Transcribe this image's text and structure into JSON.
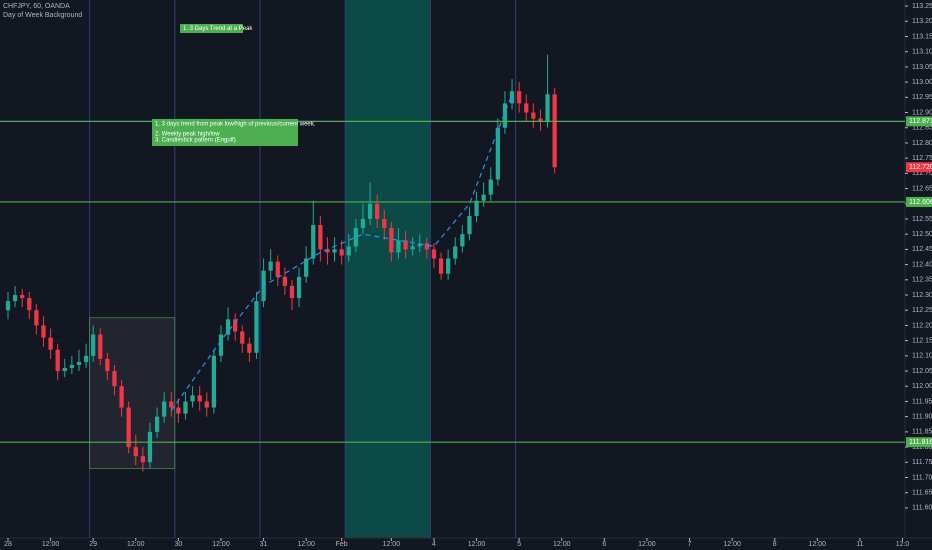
{
  "chart_data": {
    "type": "candlestick",
    "title": "CHFJPY, 60, OANDA",
    "subtitle": "Day of Week Background",
    "x": [
      0,
      2,
      4,
      6,
      8,
      10,
      12,
      14,
      16,
      18,
      20,
      22,
      24,
      26,
      28,
      30,
      32,
      34,
      36,
      38,
      40,
      42,
      44,
      46,
      48,
      50,
      52,
      54,
      56,
      58,
      60,
      62,
      64,
      66,
      68,
      70,
      72,
      74,
      76,
      78,
      80,
      82,
      84,
      86,
      88,
      90,
      92,
      94,
      96,
      98,
      100,
      102,
      104,
      106,
      108,
      110,
      112,
      114,
      116,
      118,
      120,
      122,
      124,
      126,
      128,
      130,
      132,
      134,
      136,
      138,
      140,
      142,
      144,
      146,
      148,
      150,
      152,
      154
    ],
    "open": [
      112.25,
      112.28,
      112.3,
      112.29,
      112.25,
      112.2,
      112.16,
      112.12,
      112.05,
      112.06,
      112.07,
      112.08,
      112.1,
      112.17,
      112.09,
      112.05,
      112.0,
      111.93,
      111.8,
      111.77,
      111.75,
      111.85,
      111.9,
      111.95,
      111.93,
      111.91,
      111.95,
      111.97,
      111.95,
      111.93,
      112.1,
      112.17,
      112.22,
      112.18,
      112.14,
      112.11,
      112.28,
      112.38,
      112.41,
      112.36,
      112.33,
      112.29,
      112.36,
      112.42,
      112.53,
      112.45,
      112.44,
      112.45,
      112.43,
      112.46,
      112.52,
      112.55,
      112.6,
      112.55,
      112.52,
      112.44,
      112.48,
      112.45,
      112.46,
      112.47,
      112.45,
      112.42,
      112.37,
      112.42,
      112.46,
      112.5,
      112.56,
      112.61,
      112.63,
      112.68,
      112.85,
      112.93,
      112.97,
      112.93,
      112.9,
      112.88,
      112.87,
      112.96
    ],
    "high": [
      112.31,
      112.33,
      112.32,
      112.31,
      112.27,
      112.23,
      112.19,
      112.14,
      112.09,
      112.1,
      112.12,
      112.14,
      112.2,
      112.19,
      112.11,
      112.07,
      112.02,
      111.95,
      111.84,
      111.8,
      111.88,
      111.93,
      111.98,
      111.98,
      111.96,
      111.98,
      112.0,
      112.0,
      111.98,
      112.12,
      112.2,
      112.26,
      112.24,
      112.2,
      112.16,
      112.31,
      112.42,
      112.45,
      112.43,
      112.39,
      112.35,
      112.39,
      112.46,
      112.61,
      112.56,
      112.49,
      112.49,
      112.48,
      112.5,
      112.55,
      112.6,
      112.67,
      112.63,
      112.58,
      112.54,
      112.52,
      112.51,
      112.49,
      112.5,
      112.49,
      112.47,
      112.44,
      112.45,
      112.49,
      112.53,
      112.59,
      112.64,
      112.67,
      112.72,
      112.88,
      112.97,
      113.01,
      113.0,
      112.96,
      112.93,
      112.91,
      113.09,
      112.98
    ],
    "low": [
      112.22,
      112.26,
      112.26,
      112.22,
      112.17,
      112.13,
      112.09,
      112.02,
      112.03,
      112.04,
      112.05,
      112.06,
      112.08,
      112.07,
      112.02,
      111.97,
      111.9,
      111.78,
      111.74,
      111.72,
      111.73,
      111.83,
      111.88,
      111.9,
      111.88,
      111.89,
      111.93,
      111.92,
      111.9,
      111.91,
      112.08,
      112.15,
      112.15,
      112.11,
      112.08,
      112.09,
      112.26,
      112.35,
      112.33,
      112.3,
      112.25,
      112.26,
      112.34,
      112.4,
      112.41,
      112.4,
      112.41,
      112.4,
      112.41,
      112.44,
      112.5,
      112.53,
      112.52,
      112.48,
      112.41,
      112.42,
      112.42,
      112.43,
      112.44,
      112.42,
      112.39,
      112.35,
      112.35,
      112.4,
      112.44,
      112.48,
      112.54,
      112.59,
      112.61,
      112.66,
      112.83,
      112.91,
      112.9,
      112.87,
      112.85,
      112.84,
      112.85,
      112.7
    ],
    "close": [
      112.28,
      112.3,
      112.29,
      112.25,
      112.2,
      112.16,
      112.12,
      112.05,
      112.06,
      112.07,
      112.08,
      112.1,
      112.17,
      112.09,
      112.05,
      112.0,
      111.93,
      111.8,
      111.77,
      111.75,
      111.85,
      111.9,
      111.95,
      111.93,
      111.91,
      111.95,
      111.97,
      111.95,
      111.93,
      112.1,
      112.17,
      112.22,
      112.18,
      112.14,
      112.11,
      112.28,
      112.38,
      112.41,
      112.36,
      112.33,
      112.29,
      112.36,
      112.42,
      112.53,
      112.45,
      112.44,
      112.45,
      112.43,
      112.46,
      112.52,
      112.55,
      112.6,
      112.55,
      112.52,
      112.44,
      112.48,
      112.45,
      112.46,
      112.47,
      112.45,
      112.42,
      112.37,
      112.42,
      112.46,
      112.5,
      112.56,
      112.61,
      112.63,
      112.68,
      112.85,
      112.93,
      112.97,
      112.93,
      112.9,
      112.88,
      112.87,
      112.96,
      112.72
    ],
    "up_color": "#22ab94",
    "down_color": "#f23645",
    "xlim": [
      -2.25,
      252.7
    ],
    "ylim": [
      111.501,
      113.27
    ],
    "xticks": [
      {
        "value": 0,
        "label": "28"
      },
      {
        "value": 12,
        "label": "12:00"
      },
      {
        "value": 24,
        "label": "29"
      },
      {
        "value": 36,
        "label": "12:00"
      },
      {
        "value": 48,
        "label": "30"
      },
      {
        "value": 60,
        "label": "12:00"
      },
      {
        "value": 72,
        "label": "31"
      },
      {
        "value": 84,
        "label": "12:00"
      },
      {
        "value": 94,
        "label": "Feb"
      },
      {
        "value": 108,
        "label": "12:00"
      },
      {
        "value": 120,
        "label": "4"
      },
      {
        "value": 132,
        "label": "12:00"
      },
      {
        "value": 144,
        "label": "5"
      },
      {
        "value": 156,
        "label": "12:00"
      },
      {
        "value": 168,
        "label": "6"
      },
      {
        "value": 180,
        "label": "12:00"
      },
      {
        "value": 192,
        "label": "7"
      },
      {
        "value": 204,
        "label": "12:00"
      },
      {
        "value": 216,
        "label": "8"
      },
      {
        "value": 228,
        "label": "12:00"
      },
      {
        "value": 240,
        "label": "11"
      },
      {
        "value": 252,
        "label": "12:0"
      }
    ],
    "yticks": [
      {
        "value": 111.6,
        "label": "111.600"
      },
      {
        "value": 111.65,
        "label": "111.650"
      },
      {
        "value": 111.7,
        "label": "111.700"
      },
      {
        "value": 111.75,
        "label": "111.750"
      },
      {
        "value": 111.8,
        "label": "111.800"
      },
      {
        "value": 111.85,
        "label": "111.850"
      },
      {
        "value": 111.9,
        "label": "111.900"
      },
      {
        "value": 111.95,
        "label": "111.950"
      },
      {
        "value": 112.0,
        "label": "112.000"
      },
      {
        "value": 112.05,
        "label": "112.050"
      },
      {
        "value": 112.1,
        "label": "112.100"
      },
      {
        "value": 112.15,
        "label": "112.150"
      },
      {
        "value": 112.2,
        "label": "112.200"
      },
      {
        "value": 112.25,
        "label": "112.250"
      },
      {
        "value": 112.3,
        "label": "112.300"
      },
      {
        "value": 112.35,
        "label": "112.350"
      },
      {
        "value": 112.4,
        "label": "112.400"
      },
      {
        "value": 112.45,
        "label": "112.450"
      },
      {
        "value": 112.5,
        "label": "112.500"
      },
      {
        "value": 112.55,
        "label": "112.550"
      },
      {
        "value": 112.6,
        "label": "112.600"
      },
      {
        "value": 112.65,
        "label": "112.650"
      },
      {
        "value": 112.7,
        "label": "112.700"
      },
      {
        "value": 112.75,
        "label": "112.750"
      },
      {
        "value": 112.8,
        "label": "112.800"
      },
      {
        "value": 112.85,
        "label": "112.850"
      },
      {
        "value": 112.9,
        "label": "112.900"
      },
      {
        "value": 112.95,
        "label": "112.950"
      },
      {
        "value": 113.0,
        "label": "113.000"
      },
      {
        "value": 113.05,
        "label": "113.050"
      },
      {
        "value": 113.1,
        "label": "113.100"
      },
      {
        "value": 113.15,
        "label": "113.150"
      },
      {
        "value": 113.2,
        "label": "113.200"
      },
      {
        "value": 113.25,
        "label": "113.250"
      }
    ],
    "hlines": [
      {
        "value": 112.871,
        "label": "112.871"
      },
      {
        "value": 112.606,
        "label": "112.606"
      },
      {
        "value": 111.816,
        "label": "111.816"
      }
    ],
    "hline_color": "#4caf50",
    "last_price": {
      "value": 112.72,
      "label": "112.720"
    },
    "trend_line": {
      "x": [
        46,
        60,
        72,
        88,
        100,
        120,
        130,
        142
      ],
      "y": [
        111.92,
        112.15,
        112.33,
        112.44,
        112.5,
        112.46,
        112.6,
        112.96
      ],
      "color": "#2196f3"
    },
    "zone": {
      "x": [
        23,
        47
      ],
      "y": [
        111.73,
        112.225
      ]
    },
    "session": {
      "x": [
        95,
        119
      ],
      "color": "#0b4a47"
    },
    "day_lines": [
      23,
      47,
      71,
      95,
      119,
      143
    ],
    "annotations": [
      {
        "text": "1. 3 Days Trend at a Peak"
      },
      {
        "lines": [
          "1. 3 days trend from peak low/high of previous/current week.",
          "2. Weekly peak high/low",
          "3. Candlestick pattern (Engulf)"
        ]
      }
    ]
  }
}
